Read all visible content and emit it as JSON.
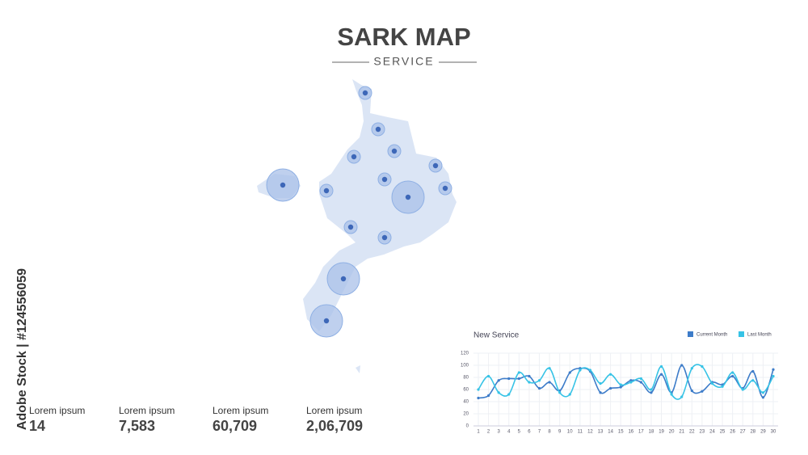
{
  "header": {
    "title": "SARK MAP",
    "subtitle": "SERVICE"
  },
  "side_label": "Adobe Stock | #124556059",
  "stats": [
    {
      "label": "Lorem ipsum",
      "value": "14"
    },
    {
      "label": "Lorem ipsum",
      "value": "7,583"
    },
    {
      "label": "Lorem ipsum",
      "value": "60,709"
    },
    {
      "label": "Lorem ipsum",
      "value": "2,06,709"
    }
  ],
  "chart_data": {
    "type": "line",
    "title": "New Service",
    "x": [
      1,
      2,
      3,
      4,
      5,
      6,
      7,
      8,
      9,
      10,
      11,
      12,
      13,
      14,
      15,
      16,
      17,
      18,
      19,
      20,
      21,
      22,
      23,
      24,
      25,
      26,
      27,
      28,
      29,
      30
    ],
    "xlim": [
      1,
      30
    ],
    "ylim": [
      0,
      120
    ],
    "yticks": [
      0,
      20,
      40,
      60,
      80,
      100,
      120
    ],
    "grid": true,
    "series": [
      {
        "name": "Current Month",
        "color": "#3d7cc9",
        "values": [
          46,
          50,
          75,
          78,
          78,
          82,
          62,
          72,
          58,
          88,
          95,
          90,
          55,
          62,
          64,
          75,
          72,
          55,
          85,
          55,
          100,
          58,
          57,
          72,
          68,
          82,
          62,
          90,
          47,
          93
        ]
      },
      {
        "name": "Last Month",
        "color": "#37c3e6",
        "values": [
          60,
          82,
          55,
          52,
          88,
          72,
          75,
          95,
          55,
          52,
          92,
          92,
          70,
          85,
          68,
          72,
          78,
          60,
          98,
          52,
          48,
          95,
          98,
          70,
          65,
          88,
          60,
          75,
          55,
          82
        ]
      }
    ]
  }
}
